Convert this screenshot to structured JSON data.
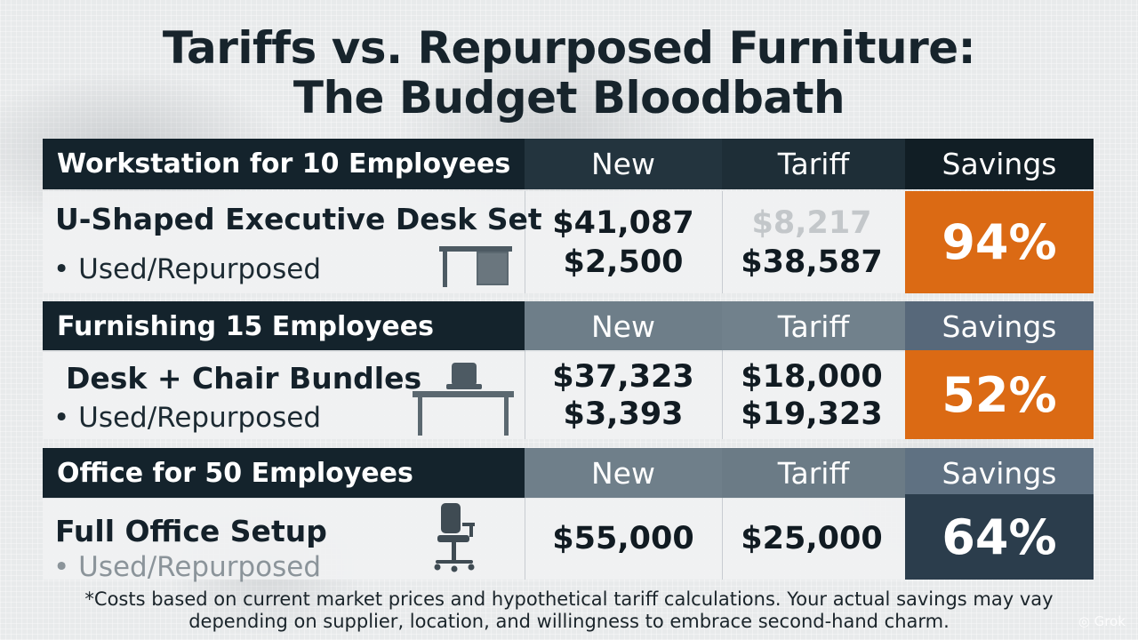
{
  "title": {
    "line1": "Tariffs vs. Repurposed Furniture:",
    "line2": "The Budget Bloodbath"
  },
  "sections": [
    {
      "header": {
        "label": "Workstation for 10 Employees",
        "col_new": "New",
        "col_tariff": "Tariff",
        "col_savings": "Savings"
      },
      "item": "U-Shaped Executive Desk Set",
      "sub": "• Used/Repurposed",
      "new_values": [
        "$41,087",
        "$2,500"
      ],
      "tariff_values": [
        "$8,217",
        "$38,587"
      ],
      "savings": "94%",
      "icon": "desk-icon"
    },
    {
      "header": {
        "label": "Furnishing 15 Employees",
        "col_new": "New",
        "col_tariff": "Tariff",
        "col_savings": "Savings"
      },
      "item": "Desk + Chair Bundles",
      "sub": "• Used/Repurposed",
      "new_values": [
        "$37,323",
        "$3,393"
      ],
      "tariff_values": [
        "$18,000",
        "$19,323"
      ],
      "savings": "52%",
      "icon": "desk-chair-icon"
    },
    {
      "header": {
        "label": "Office for 50 Employees",
        "col_new": "New",
        "col_tariff": "Tariff",
        "col_savings": "Savings"
      },
      "item": "Full Office Setup",
      "sub": "• Used/Repurposed",
      "new_values": [
        "$55,000"
      ],
      "tariff_values": [
        "$25,000"
      ],
      "savings": "64%",
      "icon": "office-chair-icon"
    }
  ],
  "footnote": {
    "line1": "*Costs based on current market prices and hypothetical tariff calculations. Your actual savings may vay",
    "line2": "depending on supplier, location, and willingness to embrace second-hand charm."
  },
  "watermark": "Grok",
  "colors": {
    "dark_header": "#14232c",
    "accent_orange": "#db6a14",
    "accent_slate": "#2b3d4c"
  }
}
